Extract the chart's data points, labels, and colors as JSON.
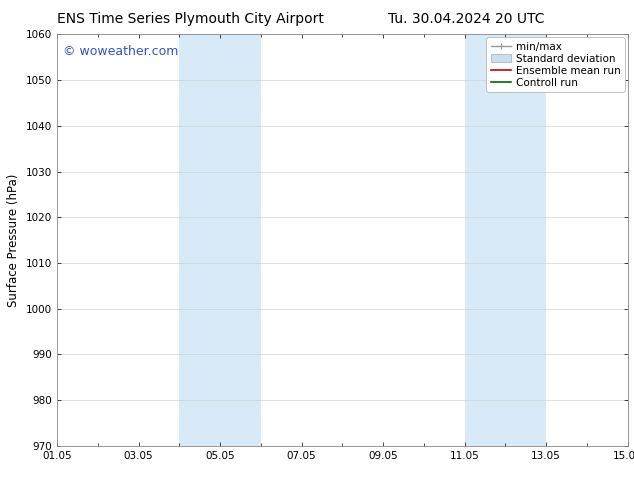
{
  "title_left": "ENS Time Series Plymouth City Airport",
  "title_right": "Tu. 30.04.2024 20 UTC",
  "ylabel": "Surface Pressure (hPa)",
  "ylim": [
    970,
    1060
  ],
  "yticks": [
    970,
    980,
    990,
    1000,
    1010,
    1020,
    1030,
    1040,
    1050,
    1060
  ],
  "xlim_start": 0,
  "xlim_end": 14,
  "xtick_labels": [
    "01.05",
    "03.05",
    "05.05",
    "07.05",
    "09.05",
    "11.05",
    "13.05",
    "15.05"
  ],
  "xtick_positions": [
    0,
    2,
    4,
    6,
    8,
    10,
    12,
    14
  ],
  "shaded_bands": [
    {
      "x_start": 3.0,
      "x_end": 5.0
    },
    {
      "x_start": 10.0,
      "x_end": 12.0
    }
  ],
  "shade_color": "#d8eaf8",
  "background_color": "#ffffff",
  "watermark_text": "© woweather.com",
  "watermark_color": "#3355bb",
  "legend_items": [
    {
      "label": "min/max",
      "color": "#999999"
    },
    {
      "label": "Standard deviation",
      "color": "#c8dff0"
    },
    {
      "label": "Ensemble mean run",
      "color": "#cc0000"
    },
    {
      "label": "Controll run",
      "color": "#006600"
    }
  ],
  "grid_color": "#cccccc",
  "spine_color": "#888888",
  "tick_color": "#000000",
  "font_size_title": 10,
  "font_size_axis": 8.5,
  "font_size_ticks": 7.5,
  "font_size_legend": 7.5,
  "font_size_watermark": 9
}
